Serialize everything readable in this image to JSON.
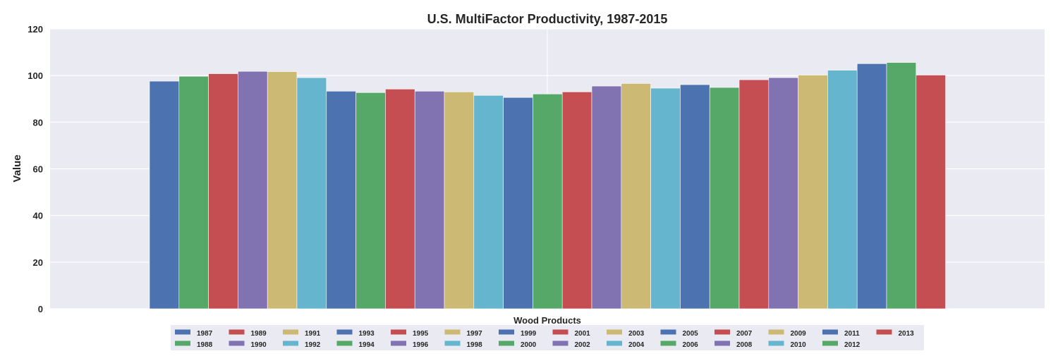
{
  "chart_data": {
    "type": "bar",
    "title": "U.S. MultiFactor Productivity, 1987-2015",
    "ylabel": "Value",
    "xlabel": "",
    "categories": [
      "Wood Products"
    ],
    "ylim": [
      0,
      120
    ],
    "yticks": [
      0,
      20,
      40,
      60,
      80,
      100,
      120
    ],
    "grid": true,
    "legend_position": "bottom",
    "series": [
      {
        "name": "1987",
        "color": "#4c72b0",
        "values": [
          97.6
        ]
      },
      {
        "name": "1988",
        "color": "#55a868",
        "values": [
          99.7
        ]
      },
      {
        "name": "1989",
        "color": "#c44e52",
        "values": [
          100.8
        ]
      },
      {
        "name": "1990",
        "color": "#8172b2",
        "values": [
          101.8
        ]
      },
      {
        "name": "1991",
        "color": "#ccb974",
        "values": [
          101.7
        ]
      },
      {
        "name": "1992",
        "color": "#64b5cd",
        "values": [
          99.1
        ]
      },
      {
        "name": "1993",
        "color": "#4c72b0",
        "values": [
          93.3
        ]
      },
      {
        "name": "1994",
        "color": "#55a868",
        "values": [
          92.7
        ]
      },
      {
        "name": "1995",
        "color": "#c44e52",
        "values": [
          94.2
        ]
      },
      {
        "name": "1996",
        "color": "#8172b2",
        "values": [
          93.3
        ]
      },
      {
        "name": "1997",
        "color": "#ccb974",
        "values": [
          93.0
        ]
      },
      {
        "name": "1998",
        "color": "#64b5cd",
        "values": [
          91.5
        ]
      },
      {
        "name": "1999",
        "color": "#4c72b0",
        "values": [
          90.6
        ]
      },
      {
        "name": "2000",
        "color": "#55a868",
        "values": [
          92.1
        ]
      },
      {
        "name": "2001",
        "color": "#c44e52",
        "values": [
          93.0
        ]
      },
      {
        "name": "2002",
        "color": "#8172b2",
        "values": [
          95.5
        ]
      },
      {
        "name": "2003",
        "color": "#ccb974",
        "values": [
          96.6
        ]
      },
      {
        "name": "2004",
        "color": "#64b5cd",
        "values": [
          94.6
        ]
      },
      {
        "name": "2005",
        "color": "#4c72b0",
        "values": [
          96.1
        ]
      },
      {
        "name": "2006",
        "color": "#55a868",
        "values": [
          94.9
        ]
      },
      {
        "name": "2007",
        "color": "#c44e52",
        "values": [
          98.2
        ]
      },
      {
        "name": "2008",
        "color": "#8172b2",
        "values": [
          99.1
        ]
      },
      {
        "name": "2009",
        "color": "#ccb974",
        "values": [
          100.2
        ]
      },
      {
        "name": "2010",
        "color": "#64b5cd",
        "values": [
          102.3
        ]
      },
      {
        "name": "2011",
        "color": "#4c72b0",
        "values": [
          105.1
        ]
      },
      {
        "name": "2012",
        "color": "#55a868",
        "values": [
          105.6
        ]
      },
      {
        "name": "2013",
        "color": "#c44e52",
        "values": [
          100.2
        ]
      }
    ]
  }
}
